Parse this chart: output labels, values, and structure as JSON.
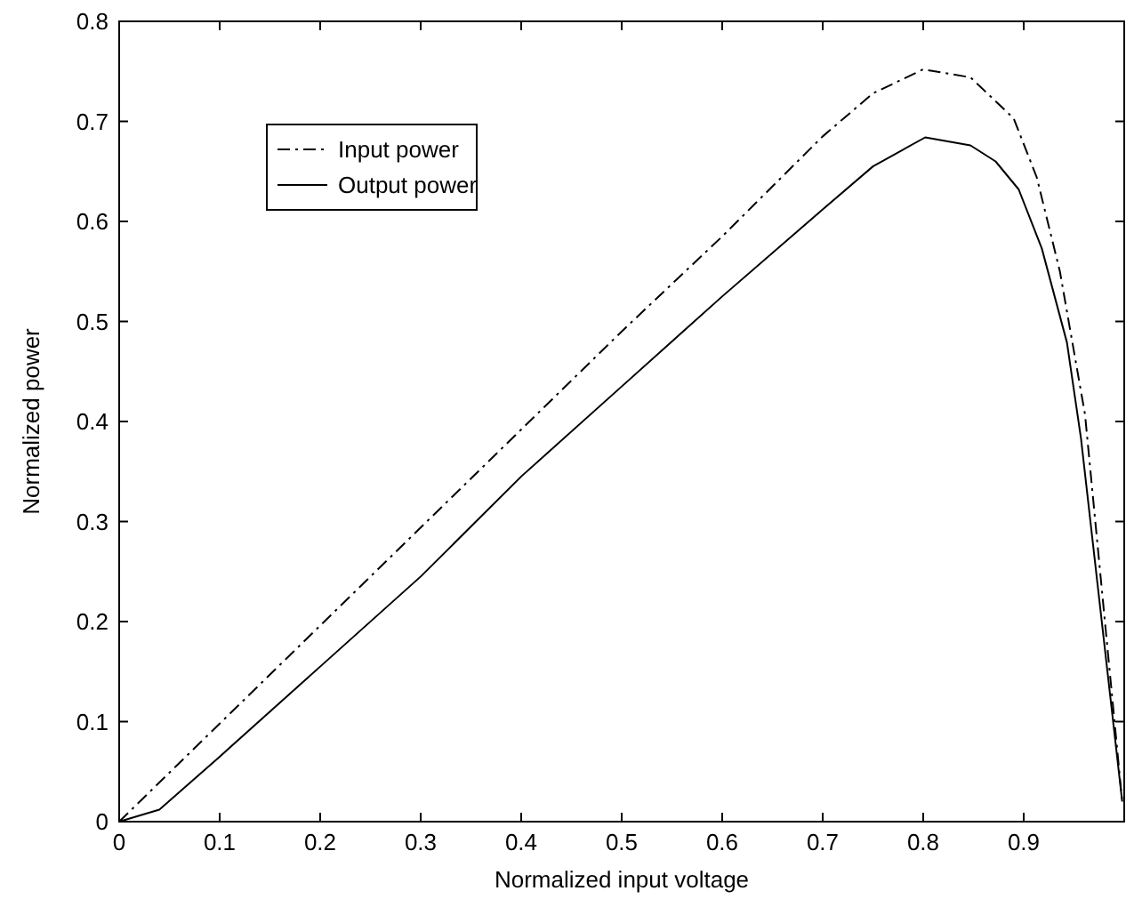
{
  "chart_data": {
    "type": "line",
    "xlabel": "Normalized input voltage",
    "ylabel": "Normalized power",
    "xlim": [
      0,
      1
    ],
    "ylim": [
      0,
      0.8
    ],
    "xticks": [
      0,
      0.1,
      0.2,
      0.3,
      0.4,
      0.5,
      0.6,
      0.7,
      0.8,
      0.9
    ],
    "yticks": [
      0,
      0.1,
      0.2,
      0.3,
      0.4,
      0.5,
      0.6,
      0.7,
      0.8
    ],
    "legend": "top left",
    "grid": false,
    "series": [
      {
        "name": "Input power",
        "color": "#000000",
        "line_style": "dashdot",
        "x": [
          0,
          0.1,
          0.2,
          0.3,
          0.4,
          0.5,
          0.6,
          0.7,
          0.75,
          0.8,
          0.847,
          0.89,
          0.913,
          0.936,
          0.961,
          0.998
        ],
        "values": [
          0,
          0.098,
          0.196,
          0.294,
          0.392,
          0.49,
          0.585,
          0.685,
          0.728,
          0.752,
          0.744,
          0.703,
          0.644,
          0.55,
          0.407,
          0.02
        ]
      },
      {
        "name": "Output power",
        "color": "#000000",
        "line_style": "solid",
        "x": [
          0,
          0.04,
          0.1,
          0.2,
          0.3,
          0.4,
          0.5,
          0.6,
          0.7,
          0.75,
          0.802,
          0.847,
          0.872,
          0.895,
          0.918,
          0.943,
          0.957,
          0.998
        ],
        "values": [
          0,
          0.012,
          0.065,
          0.155,
          0.245,
          0.345,
          0.435,
          0.525,
          0.612,
          0.655,
          0.684,
          0.676,
          0.66,
          0.632,
          0.573,
          0.479,
          0.383,
          0.02
        ]
      }
    ]
  }
}
